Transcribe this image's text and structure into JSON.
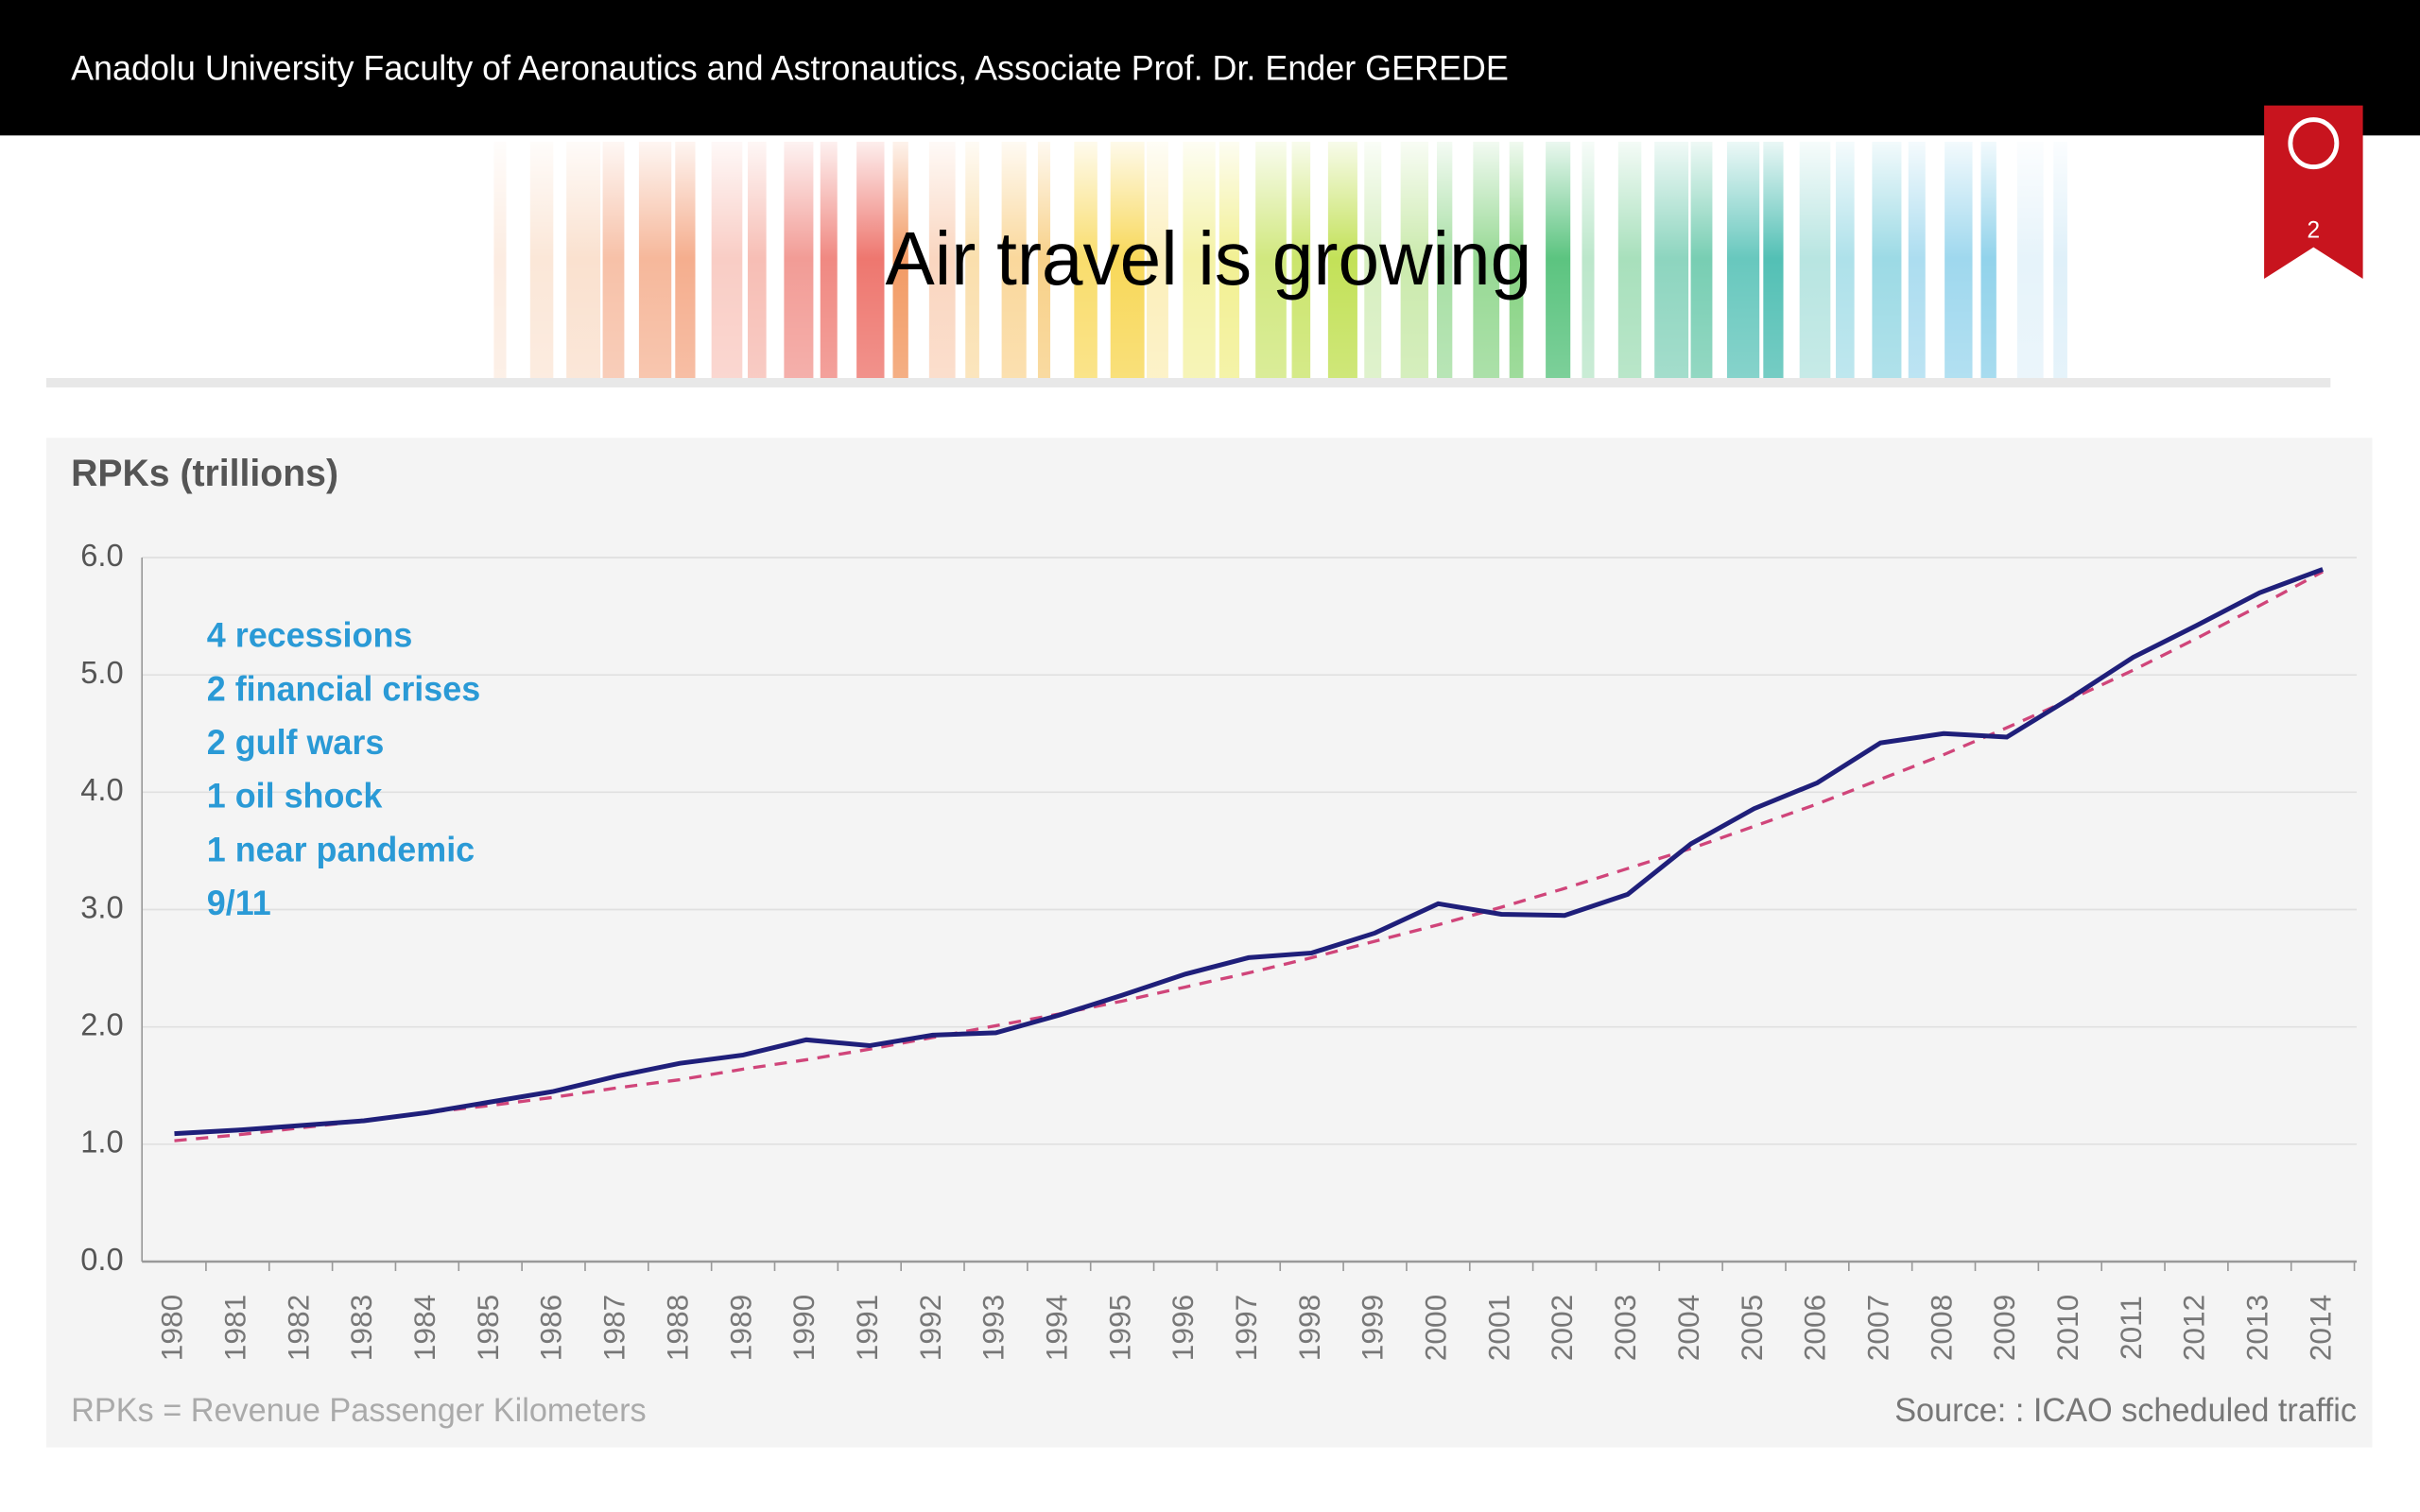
{
  "header": "Anadolu University Faculty of Aeronautics and Astronautics, Associate Prof. Dr. Ender GEREDE",
  "slide_number": "2",
  "chart_data": {
    "type": "line",
    "title": "Air travel is growing",
    "ylabel": "RPKs (trillions)",
    "annotations": [
      "4 recessions",
      "2 financial crises",
      "2 gulf wars",
      "1 oil shock",
      "1 near pandemic",
      "9/11"
    ],
    "footnote": "RPKs = Revenue Passenger Kilometers",
    "source": "Source: : ICAO scheduled traffic",
    "categories": [
      "1980",
      "1981",
      "1982",
      "1983",
      "1984",
      "1985",
      "1986",
      "1987",
      "1988",
      "1989",
      "1990",
      "1991",
      "1992",
      "1993",
      "1994",
      "1995",
      "1996",
      "1997",
      "1998",
      "1999",
      "2000",
      "2001",
      "2002",
      "2003",
      "2004",
      "2005",
      "2006",
      "2007",
      "2008",
      "2009",
      "2010",
      "2011",
      "2012",
      "2013",
      "2014"
    ],
    "series": [
      {
        "color": "#1f1f7a",
        "dash": false,
        "values": [
          1.09,
          1.12,
          1.16,
          1.2,
          1.27,
          1.36,
          1.45,
          1.58,
          1.69,
          1.76,
          1.89,
          1.84,
          1.93,
          1.95,
          2.1,
          2.27,
          2.45,
          2.59,
          2.63,
          2.8,
          3.05,
          2.96,
          2.95,
          3.13,
          3.56,
          3.86,
          4.08,
          4.42,
          4.5,
          4.47,
          4.8,
          5.15,
          5.42,
          5.7,
          5.9
        ]
      },
      {
        "color": "#d0457a",
        "dash": true,
        "values": [
          1.03,
          1.08,
          1.14,
          1.2,
          1.27,
          1.33,
          1.4,
          1.48,
          1.55,
          1.64,
          1.72,
          1.81,
          1.91,
          2.01,
          2.11,
          2.22,
          2.34,
          2.46,
          2.59,
          2.73,
          2.87,
          3.02,
          3.18,
          3.35,
          3.52,
          3.71,
          3.9,
          4.11,
          4.32,
          4.55,
          4.79,
          5.04,
          5.31,
          5.59,
          5.88
        ]
      }
    ],
    "ylim": [
      0,
      6
    ],
    "yticks": [
      {
        "value": 0,
        "label": "0.0"
      },
      {
        "value": 1,
        "label": "1.0"
      },
      {
        "value": 2,
        "label": "2.0"
      },
      {
        "value": 3,
        "label": "3.0"
      },
      {
        "value": 4,
        "label": "4.0"
      },
      {
        "value": 5,
        "label": "5.0"
      },
      {
        "value": 6,
        "label": "6.0"
      }
    ],
    "grid": true
  }
}
